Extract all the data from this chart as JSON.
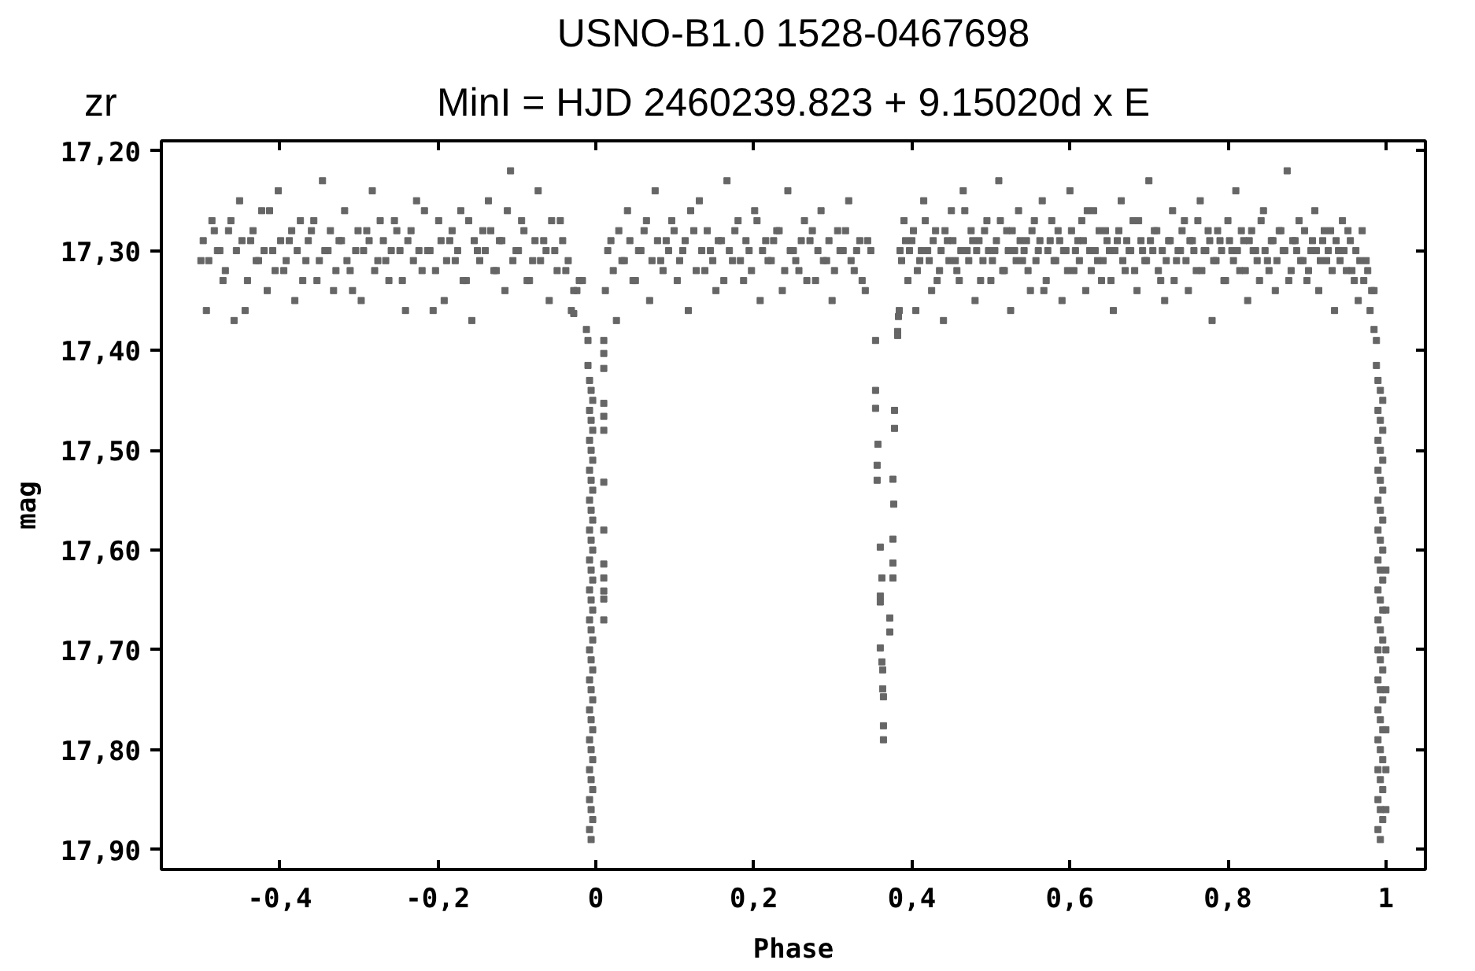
{
  "chart_data": {
    "type": "scatter",
    "title": "USNO-B1.0 1528-0467698",
    "subtitle": "MinI = HJD 2460239.823 + 9.15020d x E",
    "xlabel": "Phase",
    "ylabel": "mag",
    "annotations": [
      "zr"
    ],
    "marker": "square",
    "xlim": [
      -0.55,
      1.05
    ],
    "ylim": [
      17.92,
      17.19
    ],
    "xticks": [
      {
        "value": -0.4,
        "label": "-0,4"
      },
      {
        "value": -0.2,
        "label": "-0,2"
      },
      0,
      {
        "value": 0.2,
        "label": "0,2"
      },
      {
        "value": 0.4,
        "label": "0,4"
      },
      {
        "value": 0.6,
        "label": "0,6"
      },
      {
        "value": 0.8,
        "label": "0,8"
      },
      1
    ],
    "yticks": [
      {
        "value": 17.2,
        "label": "17,20"
      },
      {
        "value": 17.3,
        "label": "17,30"
      },
      {
        "value": 17.4,
        "label": "17,40"
      },
      {
        "value": 17.5,
        "label": "17,50"
      },
      {
        "value": 17.6,
        "label": "17,60"
      },
      {
        "value": 17.7,
        "label": "17,70"
      },
      {
        "value": 17.8,
        "label": "17,80"
      },
      {
        "value": 17.9,
        "label": "17,90"
      }
    ],
    "series": [
      {
        "color": "#666666",
        "x": [
          -0.5,
          -0.493,
          -0.486,
          -0.479,
          -0.472,
          -0.465,
          -0.458,
          -0.451,
          -0.444,
          -0.437,
          -0.43,
          -0.423,
          -0.416,
          -0.409,
          -0.402,
          -0.395,
          -0.388,
          -0.381,
          -0.374,
          -0.367,
          -0.36,
          -0.353,
          -0.346,
          -0.339,
          -0.332,
          -0.325,
          -0.318,
          -0.311,
          -0.304,
          -0.297,
          -0.29,
          -0.283,
          -0.276,
          -0.269,
          -0.262,
          -0.255,
          -0.248,
          -0.241,
          -0.234,
          -0.227,
          -0.22,
          -0.213,
          -0.206,
          -0.199,
          -0.192,
          -0.185,
          -0.178,
          -0.171,
          -0.164,
          -0.157,
          -0.15,
          -0.143,
          -0.136,
          -0.129,
          -0.122,
          -0.115,
          -0.108,
          -0.101,
          -0.094,
          -0.087,
          -0.08,
          -0.073,
          -0.066,
          -0.059,
          -0.052,
          -0.045,
          -0.038,
          -0.031,
          -0.024,
          -0.017,
          0.012,
          0.019,
          0.026,
          0.033,
          0.04,
          0.047,
          0.054,
          0.061,
          0.068,
          0.075,
          0.082,
          0.089,
          0.096,
          0.103,
          0.11,
          0.117,
          0.124,
          0.131,
          0.138,
          0.145,
          0.152,
          0.159,
          0.166,
          0.173,
          0.18,
          0.187,
          0.194,
          0.201,
          0.208,
          0.215,
          0.222,
          0.229,
          0.236,
          0.243,
          0.25,
          0.257,
          0.264,
          0.271,
          0.278,
          0.285,
          0.292,
          0.299,
          0.306,
          0.313,
          0.32,
          0.327,
          0.334,
          0.341,
          0.348
        ],
        "values": [
          17.31,
          17.36,
          17.27,
          17.3,
          17.33,
          17.28,
          17.37,
          17.25,
          17.36,
          17.29,
          17.31,
          17.26,
          17.34,
          17.3,
          17.24,
          17.32,
          17.29,
          17.35,
          17.27,
          17.31,
          17.28,
          17.33,
          17.23,
          17.3,
          17.34,
          17.29,
          17.26,
          17.32,
          17.3,
          17.35,
          17.28,
          17.24,
          17.31,
          17.29,
          17.33,
          17.27,
          17.3,
          17.36,
          17.28,
          17.25,
          17.32,
          17.3,
          17.36,
          17.27,
          17.35,
          17.29,
          17.31,
          17.26,
          17.33,
          17.37,
          17.3,
          17.28,
          17.25,
          17.32,
          17.29,
          17.34,
          17.22,
          17.3,
          17.27,
          17.33,
          17.31,
          17.24,
          17.29,
          17.35,
          17.3,
          17.27,
          17.32,
          17.36,
          17.34,
          17.33,
          17.34,
          17.29,
          17.37,
          17.31,
          17.26,
          17.33,
          17.3,
          17.28,
          17.35,
          17.24,
          17.31,
          17.29,
          17.27,
          17.33,
          17.3,
          17.36,
          17.28,
          17.25,
          17.32,
          17.3,
          17.34,
          17.29,
          17.23,
          17.31,
          17.27,
          17.33,
          17.3,
          17.26,
          17.35,
          17.29,
          17.31,
          17.28,
          17.34,
          17.24,
          17.3,
          17.32,
          17.27,
          17.29,
          17.33,
          17.26,
          17.31,
          17.35,
          17.28,
          17.3,
          17.25,
          17.32,
          17.29,
          17.34,
          17.3
        ]
      },
      {
        "color": "#666666",
        "x": [
          -0.497,
          -0.49,
          -0.483,
          -0.476,
          -0.469,
          -0.462,
          -0.455,
          -0.448,
          -0.441,
          -0.434,
          -0.427,
          -0.42,
          -0.413,
          -0.406,
          -0.399,
          -0.392,
          -0.385,
          -0.378,
          -0.371,
          -0.364,
          -0.357,
          -0.35,
          -0.343,
          -0.336,
          -0.329,
          -0.322,
          -0.315,
          -0.308,
          -0.301,
          -0.294,
          -0.287,
          -0.28,
          -0.273,
          -0.266,
          -0.259,
          -0.252,
          -0.245,
          -0.238,
          -0.231,
          -0.224,
          -0.217,
          -0.21,
          -0.203,
          -0.196,
          -0.189,
          -0.182,
          -0.175,
          -0.168,
          -0.161,
          -0.154,
          -0.147,
          -0.14,
          -0.133,
          -0.126,
          -0.119,
          -0.112,
          -0.105,
          -0.098,
          -0.091,
          -0.084,
          -0.077,
          -0.07,
          -0.063,
          -0.056,
          -0.049,
          -0.042,
          -0.035,
          -0.028,
          -0.021,
          0.015,
          0.022,
          0.029,
          0.036,
          0.043,
          0.05,
          0.057,
          0.064,
          0.071,
          0.078,
          0.085,
          0.092,
          0.099,
          0.106,
          0.113,
          0.12,
          0.127,
          0.134,
          0.141,
          0.148,
          0.155,
          0.162,
          0.169,
          0.176,
          0.183,
          0.19,
          0.197,
          0.204,
          0.211,
          0.218,
          0.225,
          0.232,
          0.239,
          0.246,
          0.253,
          0.26,
          0.267,
          0.274,
          0.281,
          0.288,
          0.295,
          0.302,
          0.309,
          0.316,
          0.323,
          0.33,
          0.337,
          0.344
        ],
        "values": [
          17.29,
          17.31,
          17.28,
          17.3,
          17.32,
          17.27,
          17.3,
          17.29,
          17.33,
          17.28,
          17.31,
          17.3,
          17.26,
          17.32,
          17.29,
          17.31,
          17.28,
          17.3,
          17.33,
          17.29,
          17.27,
          17.31,
          17.3,
          17.28,
          17.32,
          17.29,
          17.31,
          17.34,
          17.28,
          17.3,
          17.29,
          17.32,
          17.27,
          17.31,
          17.3,
          17.28,
          17.33,
          17.29,
          17.31,
          17.3,
          17.26,
          17.3,
          17.32,
          17.29,
          17.31,
          17.28,
          17.3,
          17.33,
          17.27,
          17.29,
          17.31,
          17.3,
          17.28,
          17.32,
          17.29,
          17.26,
          17.31,
          17.3,
          17.28,
          17.33,
          17.29,
          17.31,
          17.3,
          17.27,
          17.32,
          17.29,
          17.31,
          17.34,
          17.33,
          17.3,
          17.32,
          17.28,
          17.31,
          17.29,
          17.33,
          17.3,
          17.27,
          17.31,
          17.29,
          17.32,
          17.3,
          17.28,
          17.31,
          17.29,
          17.26,
          17.32,
          17.3,
          17.28,
          17.31,
          17.29,
          17.33,
          17.3,
          17.28,
          17.31,
          17.29,
          17.32,
          17.27,
          17.3,
          17.31,
          17.29,
          17.28,
          17.32,
          17.3,
          17.31,
          17.29,
          17.33,
          17.28,
          17.3,
          17.31,
          17.29,
          17.32,
          17.3,
          17.28,
          17.31,
          17.3,
          17.33,
          17.29
        ]
      },
      {
        "color": "#666666",
        "x": [
          0.385,
          0.39,
          0.395,
          0.4,
          0.405,
          0.41,
          0.415,
          0.42,
          0.425,
          0.43,
          0.435,
          0.44,
          0.445,
          0.45,
          0.455,
          0.46,
          0.465,
          0.47,
          0.475,
          0.48,
          0.485,
          0.49,
          0.495,
          0.5,
          0.505,
          0.51,
          0.515,
          0.52,
          0.525,
          0.53,
          0.535,
          0.54,
          0.545,
          0.55,
          0.555,
          0.56,
          0.565,
          0.57,
          0.575,
          0.58,
          0.585,
          0.59,
          0.595,
          0.6,
          0.605,
          0.61,
          0.615,
          0.62,
          0.625,
          0.63,
          0.635,
          0.64,
          0.645,
          0.65,
          0.655,
          0.66,
          0.665,
          0.67,
          0.675,
          0.68,
          0.685,
          0.69,
          0.695,
          0.7,
          0.705,
          0.71,
          0.715,
          0.72,
          0.725,
          0.73,
          0.735,
          0.74,
          0.745,
          0.75,
          0.755,
          0.76,
          0.765,
          0.77,
          0.775,
          0.78,
          0.785,
          0.79,
          0.795,
          0.8,
          0.805,
          0.81,
          0.815,
          0.82,
          0.825,
          0.83,
          0.835,
          0.84,
          0.845,
          0.85,
          0.855,
          0.86,
          0.865,
          0.87,
          0.875,
          0.88,
          0.885,
          0.89,
          0.895,
          0.9,
          0.905,
          0.91,
          0.915,
          0.92,
          0.925,
          0.93,
          0.935,
          0.94,
          0.945,
          0.95,
          0.955,
          0.96,
          0.965,
          0.97,
          0.975,
          0.98,
          0.985
        ],
        "values": [
          17.3,
          17.27,
          17.33,
          17.29,
          17.36,
          17.31,
          17.25,
          17.3,
          17.34,
          17.28,
          17.32,
          17.37,
          17.29,
          17.26,
          17.31,
          17.33,
          17.24,
          17.3,
          17.28,
          17.35,
          17.29,
          17.31,
          17.27,
          17.33,
          17.3,
          17.23,
          17.32,
          17.28,
          17.36,
          17.3,
          17.26,
          17.31,
          17.29,
          17.34,
          17.27,
          17.3,
          17.25,
          17.33,
          17.29,
          17.31,
          17.28,
          17.35,
          17.3,
          17.24,
          17.32,
          17.29,
          17.27,
          17.34,
          17.3,
          17.26,
          17.31,
          17.33,
          17.28,
          17.3,
          17.36,
          17.29,
          17.25,
          17.32,
          17.3,
          17.27,
          17.34,
          17.29,
          17.31,
          17.23,
          17.3,
          17.28,
          17.33,
          17.35,
          17.29,
          17.26,
          17.31,
          17.3,
          17.27,
          17.34,
          17.29,
          17.32,
          17.25,
          17.3,
          17.28,
          17.37,
          17.31,
          17.29,
          17.33,
          17.27,
          17.3,
          17.24,
          17.32,
          17.29,
          17.35,
          17.28,
          17.3,
          17.33,
          17.26,
          17.31,
          17.29,
          17.34,
          17.28,
          17.3,
          17.22,
          17.32,
          17.29,
          17.27,
          17.31,
          17.33,
          17.3,
          17.26,
          17.34,
          17.29,
          17.31,
          17.28,
          17.36,
          17.3,
          17.27,
          17.32,
          17.29,
          17.33,
          17.35,
          17.28,
          17.31,
          17.36,
          17.34
        ]
      },
      {
        "color": "#666666",
        "x": [
          0.387,
          0.392,
          0.397,
          0.402,
          0.407,
          0.412,
          0.417,
          0.422,
          0.427,
          0.432,
          0.437,
          0.442,
          0.447,
          0.452,
          0.457,
          0.462,
          0.467,
          0.472,
          0.477,
          0.482,
          0.487,
          0.492,
          0.497,
          0.502,
          0.507,
          0.512,
          0.517,
          0.522,
          0.527,
          0.532,
          0.537,
          0.542,
          0.547,
          0.552,
          0.557,
          0.562,
          0.567,
          0.572,
          0.577,
          0.582,
          0.587,
          0.592,
          0.597,
          0.602,
          0.607,
          0.612,
          0.617,
          0.622,
          0.627,
          0.632,
          0.637,
          0.642,
          0.647,
          0.652,
          0.657,
          0.662,
          0.667,
          0.672,
          0.677,
          0.682,
          0.687,
          0.692,
          0.697,
          0.702,
          0.707,
          0.712,
          0.717,
          0.722,
          0.727,
          0.732,
          0.737,
          0.742,
          0.747,
          0.752,
          0.757,
          0.762,
          0.767,
          0.772,
          0.777,
          0.782,
          0.787,
          0.792,
          0.797,
          0.802,
          0.807,
          0.812,
          0.817,
          0.822,
          0.827,
          0.832,
          0.837,
          0.842,
          0.847,
          0.852,
          0.857,
          0.862,
          0.867,
          0.872,
          0.877,
          0.882,
          0.887,
          0.892,
          0.897,
          0.902,
          0.907,
          0.912,
          0.917,
          0.922,
          0.927,
          0.932,
          0.937,
          0.942,
          0.947,
          0.952,
          0.957,
          0.962,
          0.967,
          0.972,
          0.977,
          0.982
        ],
        "values": [
          17.31,
          17.29,
          17.3,
          17.28,
          17.32,
          17.3,
          17.27,
          17.31,
          17.29,
          17.33,
          17.3,
          17.28,
          17.31,
          17.29,
          17.32,
          17.3,
          17.26,
          17.31,
          17.29,
          17.3,
          17.33,
          17.28,
          17.3,
          17.31,
          17.29,
          17.27,
          17.32,
          17.3,
          17.28,
          17.31,
          17.29,
          17.3,
          17.32,
          17.28,
          17.31,
          17.29,
          17.34,
          17.3,
          17.27,
          17.31,
          17.29,
          17.3,
          17.32,
          17.28,
          17.3,
          17.31,
          17.29,
          17.26,
          17.32,
          17.3,
          17.28,
          17.31,
          17.29,
          17.33,
          17.3,
          17.28,
          17.31,
          17.29,
          17.3,
          17.32,
          17.27,
          17.3,
          17.31,
          17.29,
          17.28,
          17.32,
          17.3,
          17.31,
          17.29,
          17.33,
          17.3,
          17.28,
          17.31,
          17.29,
          17.3,
          17.27,
          17.32,
          17.3,
          17.29,
          17.31,
          17.28,
          17.3,
          17.33,
          17.29,
          17.31,
          17.3,
          17.28,
          17.32,
          17.29,
          17.3,
          17.31,
          17.27,
          17.3,
          17.32,
          17.29,
          17.31,
          17.28,
          17.3,
          17.33,
          17.29,
          17.3,
          17.31,
          17.28,
          17.32,
          17.29,
          17.3,
          17.31,
          17.28,
          17.3,
          17.32,
          17.29,
          17.31,
          17.3,
          17.28,
          17.32,
          17.3,
          17.31,
          17.33,
          17.32,
          17.34
        ]
      },
      {
        "color": "#666666",
        "x": [
          -0.028,
          -0.012,
          -0.01,
          0.01,
          -0.01,
          0.01,
          0.01,
          -0.008,
          -0.006,
          -0.004,
          -0.008,
          -0.006,
          -0.004,
          -0.008,
          -0.006,
          -0.004,
          -0.008,
          -0.006,
          -0.004,
          -0.008,
          -0.006,
          -0.004,
          -0.008,
          -0.006,
          -0.004,
          -0.008,
          -0.006,
          -0.004,
          -0.008,
          -0.006,
          -0.004,
          -0.008,
          -0.006,
          -0.004,
          -0.008,
          -0.006,
          -0.004,
          -0.008,
          -0.006,
          -0.004,
          -0.008,
          -0.006,
          -0.004,
          -0.008,
          -0.006,
          -0.004,
          -0.008,
          -0.006,
          -0.004,
          -0.008,
          -0.006,
          -0.004,
          -0.008,
          -0.006,
          0.01,
          0.01,
          0.01,
          0.01,
          0.01,
          0.01,
          0.01,
          0.01,
          0.01,
          0.01
        ],
        "values": [
          17.363,
          17.379,
          17.39,
          17.39,
          17.415,
          17.403,
          17.418,
          17.43,
          17.44,
          17.45,
          17.46,
          17.47,
          17.48,
          17.49,
          17.5,
          17.51,
          17.52,
          17.53,
          17.54,
          17.55,
          17.56,
          17.57,
          17.58,
          17.59,
          17.6,
          17.61,
          17.62,
          17.63,
          17.64,
          17.65,
          17.66,
          17.67,
          17.68,
          17.69,
          17.7,
          17.71,
          17.72,
          17.73,
          17.74,
          17.75,
          17.76,
          17.77,
          17.78,
          17.79,
          17.8,
          17.81,
          17.82,
          17.83,
          17.84,
          17.85,
          17.86,
          17.87,
          17.88,
          17.89,
          17.453,
          17.466,
          17.48,
          17.532,
          17.58,
          17.614,
          17.628,
          17.641,
          17.649,
          17.67
        ]
      },
      {
        "color": "#666666",
        "x": [
          0.985,
          0.988,
          0.988,
          0.99,
          0.993,
          0.996,
          0.99,
          0.993,
          0.996,
          0.99,
          0.993,
          0.996,
          0.99,
          0.993,
          0.996,
          0.99,
          0.993,
          0.996,
          0.99,
          0.993,
          0.996,
          0.99,
          0.993,
          0.996,
          0.99,
          0.993,
          0.996,
          0.99,
          0.993,
          0.996,
          0.99,
          0.993,
          0.996,
          0.99,
          0.993,
          0.996,
          0.99,
          0.993,
          0.996,
          0.99,
          0.993,
          0.996,
          0.99,
          0.993,
          0.996,
          0.99,
          0.993,
          0.996,
          0.99,
          0.993,
          1.0,
          1.0,
          1.0,
          1.0,
          1.0,
          1.0,
          1.0
        ],
        "values": [
          17.379,
          17.39,
          17.415,
          17.43,
          17.44,
          17.45,
          17.46,
          17.47,
          17.48,
          17.49,
          17.5,
          17.51,
          17.52,
          17.53,
          17.54,
          17.55,
          17.56,
          17.57,
          17.58,
          17.59,
          17.6,
          17.61,
          17.62,
          17.63,
          17.64,
          17.65,
          17.66,
          17.67,
          17.68,
          17.69,
          17.7,
          17.71,
          17.72,
          17.73,
          17.74,
          17.75,
          17.76,
          17.77,
          17.78,
          17.79,
          17.8,
          17.81,
          17.82,
          17.83,
          17.84,
          17.85,
          17.86,
          17.87,
          17.88,
          17.89,
          17.62,
          17.66,
          17.7,
          17.74,
          17.78,
          17.82,
          17.86
        ]
      },
      {
        "color": "#666666",
        "x": [
          0.354,
          0.354,
          0.354,
          0.357,
          0.356,
          0.356,
          0.36,
          0.362,
          0.36,
          0.36,
          0.36,
          0.362,
          0.363,
          0.363,
          0.364,
          0.364,
          0.364,
          0.372,
          0.372,
          0.384,
          0.383,
          0.382,
          0.382,
          0.378,
          0.378,
          0.376,
          0.377,
          0.376,
          0.376,
          0.376
        ],
        "values": [
          17.39,
          17.44,
          17.458,
          17.494,
          17.515,
          17.53,
          17.597,
          17.628,
          17.646,
          17.652,
          17.698,
          17.712,
          17.72,
          17.739,
          17.747,
          17.776,
          17.79,
          17.668,
          17.682,
          17.36,
          17.366,
          17.381,
          17.385,
          17.46,
          17.478,
          17.529,
          17.554,
          17.589,
          17.613,
          17.628
        ]
      }
    ]
  }
}
